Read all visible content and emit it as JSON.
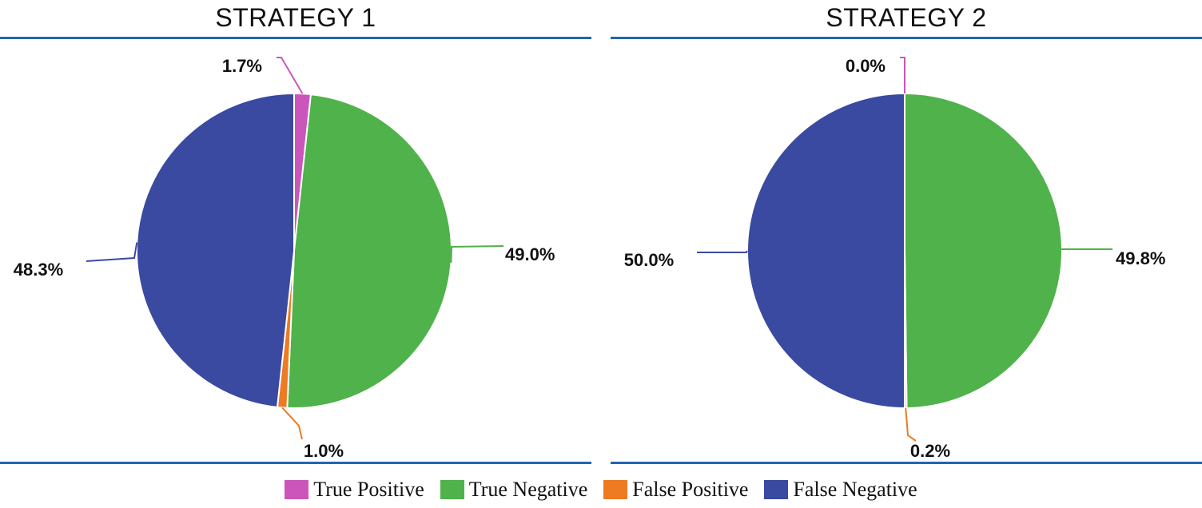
{
  "colors": {
    "true_positive": "#cc55bb",
    "true_negative": "#4fb24a",
    "false_positive": "#ee7a22",
    "false_negative": "#3a4aa0",
    "rule": "#1f66b3"
  },
  "legend": [
    {
      "key": "true_positive",
      "label": "True Positive"
    },
    {
      "key": "true_negative",
      "label": "True Negative"
    },
    {
      "key": "false_positive",
      "label": "False Positive"
    },
    {
      "key": "false_negative",
      "label": "False Negative"
    }
  ],
  "chart_data": [
    {
      "type": "pie",
      "title": "STRATEGY 1",
      "categories": [
        "True Positive",
        "True Negative",
        "False Positive",
        "False Negative"
      ],
      "values": [
        1.7,
        49.0,
        1.0,
        48.3
      ],
      "labels": [
        "1.7%",
        "49.0%",
        "1.0%",
        "48.3%"
      ],
      "start_angle": "clockwise from top"
    },
    {
      "type": "pie",
      "title": "STRATEGY 2",
      "categories": [
        "True Positive",
        "True Negative",
        "False Positive",
        "False Negative"
      ],
      "values": [
        0.0,
        49.8,
        0.2,
        50.0
      ],
      "labels": [
        "0.0%",
        "49.8%",
        "0.2%",
        "50.0%"
      ],
      "start_angle": "clockwise from top"
    }
  ]
}
